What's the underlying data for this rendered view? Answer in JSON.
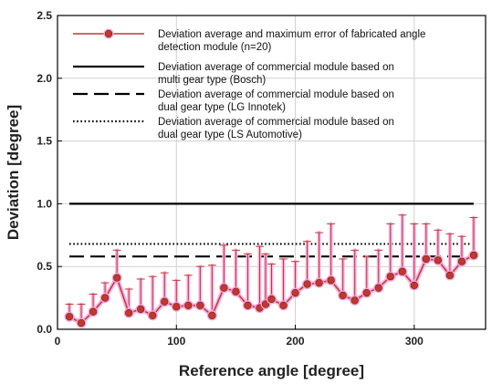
{
  "chart_data": {
    "type": "line",
    "xlabel": "Reference angle [degree]",
    "ylabel": "Deviation [degree]",
    "xlim": [
      0,
      360
    ],
    "ylim": [
      0,
      2.5
    ],
    "x_ticks": [
      0,
      100,
      200,
      300
    ],
    "y_ticks": [
      0.0,
      0.5,
      1.0,
      1.5,
      2.0,
      2.5
    ],
    "y_tick_labels": [
      "0.0",
      "0.5",
      "1.0",
      "1.5",
      "2.0",
      "2.5"
    ],
    "grid": true,
    "legend_position": "top",
    "series": [
      {
        "name": "Deviation average and maximum error of fabricated angle detection module (n=20)",
        "legend_lines": [
          "Deviation average and maximum error of fabricated angle",
          "detection module (n=20)"
        ],
        "style": "line-marker-errorbar",
        "color": "#c0392b",
        "marker_color": "#c0392b",
        "x": [
          10,
          20,
          30,
          40,
          50,
          60,
          70,
          80,
          90,
          100,
          110,
          120,
          130,
          140,
          150,
          160,
          170,
          175,
          180,
          190,
          200,
          210,
          220,
          230,
          240,
          250,
          260,
          270,
          280,
          290,
          300,
          310,
          320,
          330,
          340,
          350
        ],
        "y": [
          0.1,
          0.05,
          0.14,
          0.25,
          0.41,
          0.13,
          0.16,
          0.11,
          0.22,
          0.18,
          0.19,
          0.19,
          0.11,
          0.33,
          0.3,
          0.19,
          0.17,
          0.2,
          0.24,
          0.19,
          0.29,
          0.36,
          0.37,
          0.39,
          0.27,
          0.23,
          0.29,
          0.33,
          0.42,
          0.46,
          0.35,
          0.56,
          0.55,
          0.43,
          0.54,
          0.59
        ],
        "y_max_error": [
          0.2,
          0.2,
          0.28,
          0.37,
          0.63,
          0.32,
          0.4,
          0.42,
          0.45,
          0.39,
          0.43,
          0.5,
          0.51,
          0.67,
          0.63,
          0.6,
          0.66,
          0.6,
          0.52,
          0.56,
          0.54,
          0.7,
          0.77,
          0.84,
          0.56,
          0.63,
          0.58,
          0.63,
          0.84,
          0.91,
          0.84,
          0.84,
          0.79,
          0.76,
          0.74,
          0.89
        ]
      },
      {
        "name": "Deviation average of commercial module based on multi gear type (Bosch)",
        "legend_lines": [
          "Deviation average of commercial module based on",
          "multi gear type (Bosch)"
        ],
        "style": "solid",
        "color": "#000000",
        "x": [
          10,
          350
        ],
        "y": [
          1.0,
          1.0
        ]
      },
      {
        "name": "Deviation average of commercial module based on dual gear type (LG Innotek)",
        "legend_lines": [
          "Deviation average of commercial module based on",
          "dual gear type (LG Innotek)"
        ],
        "style": "dashed",
        "color": "#000000",
        "x": [
          10,
          350
        ],
        "y": [
          0.58,
          0.58
        ]
      },
      {
        "name": "Deviation average of commercial module based on dual gear type (LS Automotive)",
        "legend_lines": [
          "Deviation average of commercial module based on",
          "dual gear type (LS Automotive)"
        ],
        "style": "dotted",
        "color": "#000000",
        "x": [
          10,
          350
        ],
        "y": [
          0.68,
          0.68
        ]
      }
    ]
  }
}
